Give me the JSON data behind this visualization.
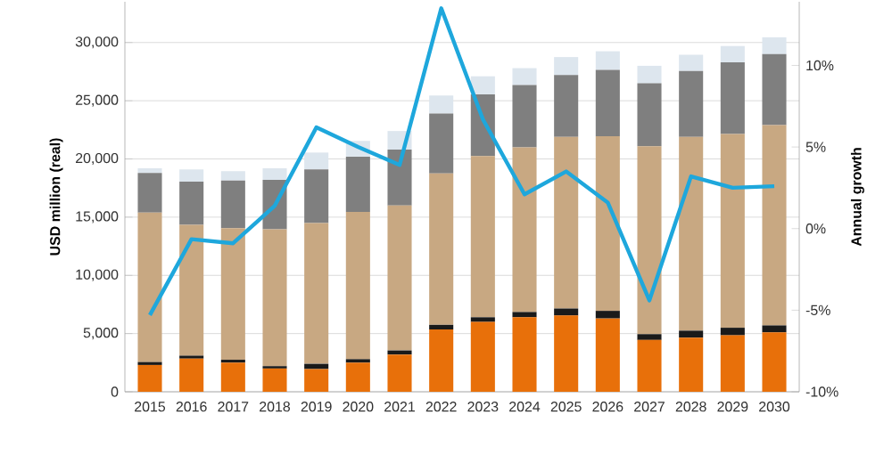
{
  "chart_data": {
    "type": "bar",
    "stacked": true,
    "grid": "y",
    "ylabel": "USD million (real)",
    "y2label": "Annual growth",
    "categories": [
      "2015",
      "2016",
      "2017",
      "2018",
      "2019",
      "2020",
      "2021",
      "2022",
      "2023",
      "2024",
      "2025",
      "2026",
      "2027",
      "2028",
      "2029",
      "2030"
    ],
    "ylim": [
      0,
      33500
    ],
    "yticks": [
      0,
      {
        "value": 5000,
        "label": "5,000"
      },
      {
        "value": 10000,
        "label": "10,000"
      },
      {
        "value": 15000,
        "label": "15,000"
      },
      {
        "value": 20000,
        "label": "20,000"
      },
      {
        "value": 25000,
        "label": "25,000"
      },
      {
        "value": 30000,
        "label": "30,000"
      }
    ],
    "y2lim": [
      -10,
      13.9
    ],
    "y2ticks": [
      {
        "value": -10,
        "label": "-10%"
      },
      {
        "value": -5,
        "label": "-5%"
      },
      {
        "value": 0,
        "label": "0%"
      },
      {
        "value": 5,
        "label": "5%"
      },
      {
        "value": 10,
        "label": "10%"
      }
    ],
    "series": [
      {
        "color": "#e8700a",
        "values": [
          2300,
          2850,
          2500,
          2000,
          1950,
          2500,
          3200,
          5350,
          6000,
          6400,
          6550,
          6300,
          4450,
          4650,
          4850,
          5100
        ]
      },
      {
        "color": "#1a1a1a",
        "values": [
          250,
          250,
          250,
          200,
          450,
          300,
          350,
          400,
          400,
          450,
          600,
          650,
          500,
          600,
          650,
          600
        ]
      },
      {
        "color": "#c8a882",
        "values": [
          12850,
          11250,
          11300,
          11750,
          12100,
          12650,
          12450,
          13000,
          13850,
          14150,
          14750,
          15000,
          16150,
          16650,
          16650,
          17200
        ]
      },
      {
        "color": "#7f7f7f",
        "values": [
          3400,
          3700,
          4100,
          4250,
          4600,
          4750,
          4800,
          5150,
          5300,
          5350,
          5300,
          5700,
          5400,
          5650,
          6150,
          6100
        ]
      },
      {
        "color": "#dde6ee",
        "values": [
          400,
          1050,
          800,
          1000,
          1450,
          1350,
          1600,
          1550,
          1550,
          1450,
          1550,
          1600,
          1500,
          1400,
          1400,
          1450
        ]
      },
      {
        "type": "line",
        "axis": "y2",
        "color": "#1ea7dc",
        "values": [
          -5.3,
          -0.65,
          -0.9,
          1.4,
          6.2,
          5.0,
          3.9,
          13.5,
          6.7,
          2.1,
          3.5,
          1.6,
          -4.4,
          3.2,
          2.5,
          2.6
        ]
      }
    ]
  }
}
